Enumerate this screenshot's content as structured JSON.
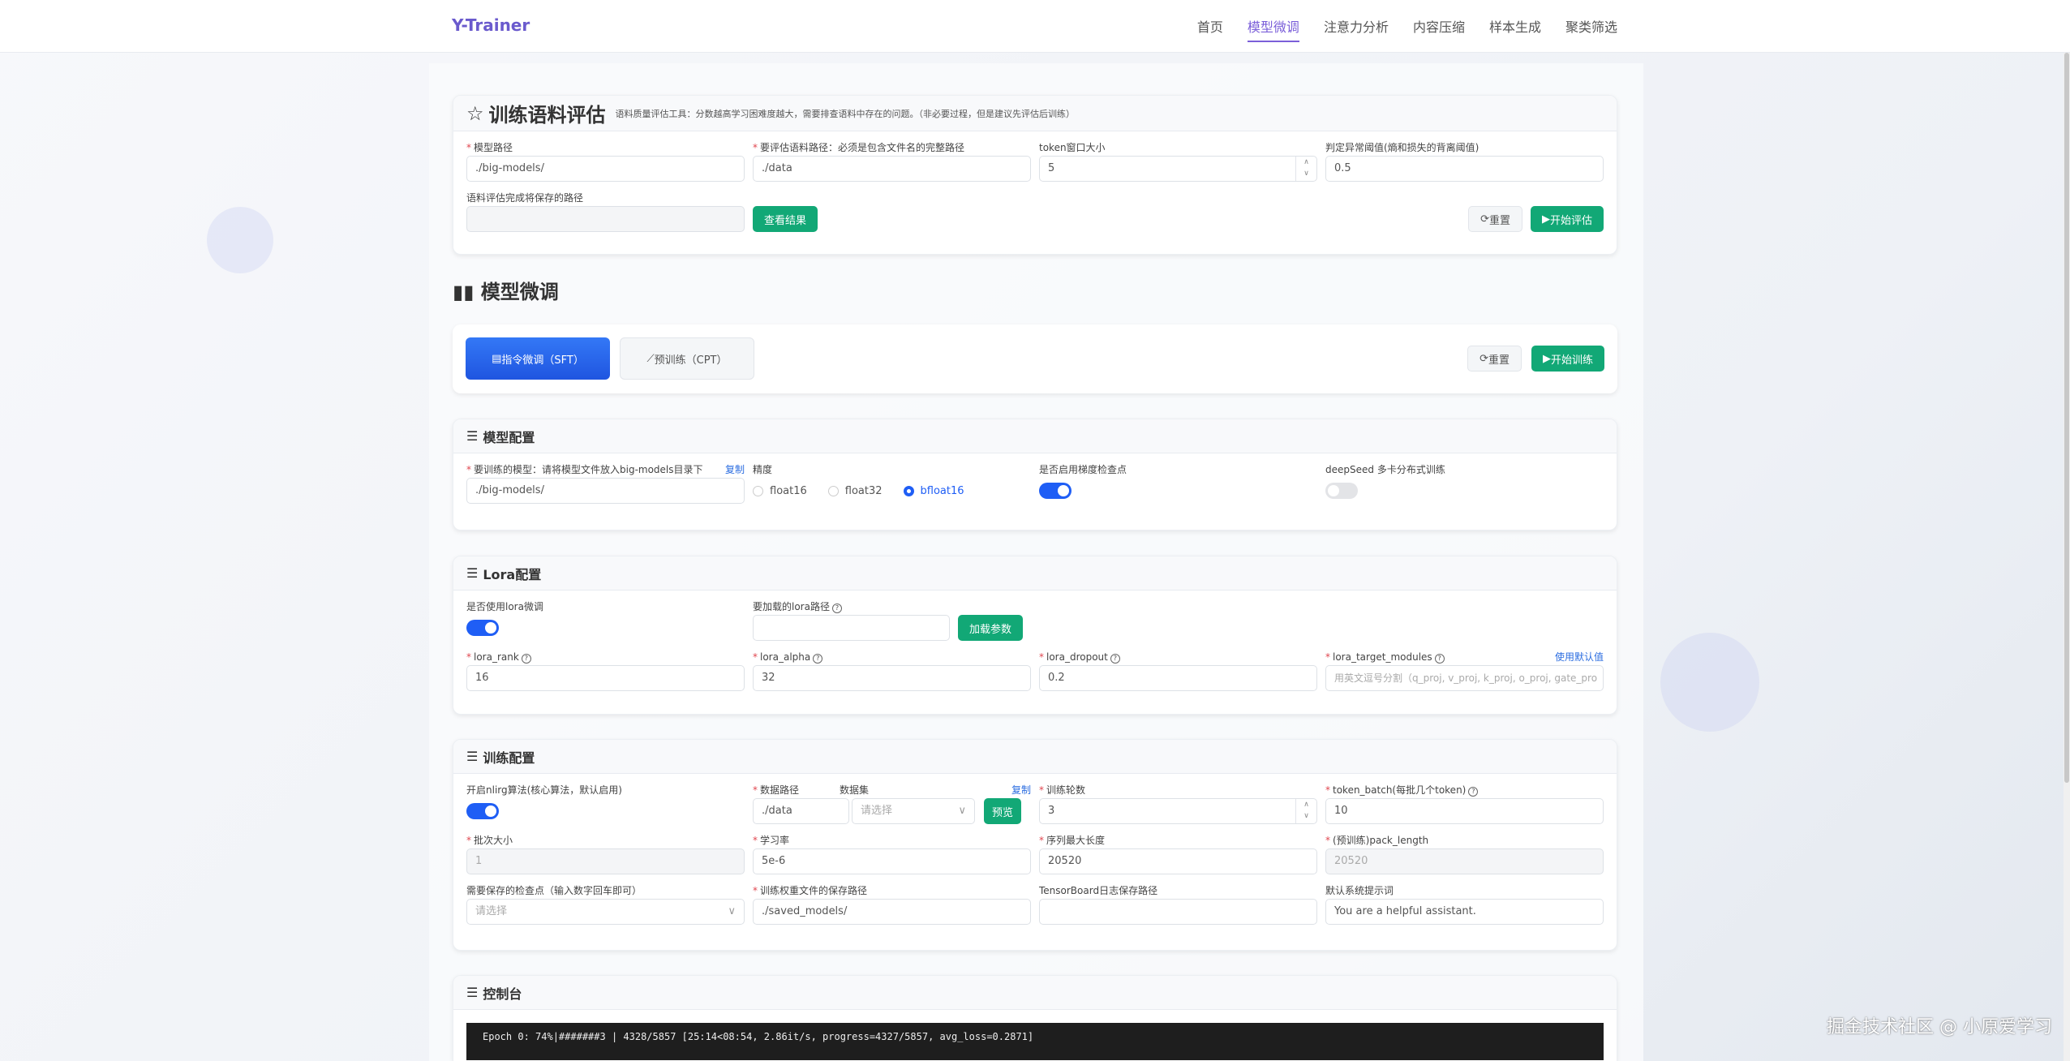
{
  "nav": {
    "logo": "Y-Trainer",
    "items": [
      "首页",
      "模型微调",
      "注意力分析",
      "内容压缩",
      "样本生成",
      "聚类筛选"
    ],
    "active": 1
  },
  "eval": {
    "title": "训练语料评估",
    "desc": "语料质量评估工具：分数越高学习困难度越大，需要排查语料中存在的问题。（非必要过程，但是建议先评估后训练）",
    "model_path_label": "模型路径",
    "model_path": "./big-models/",
    "data_path_label": "要评估语料路径：必须是包含文件名的完整路径",
    "data_path": "./data",
    "token_window_label": "token窗口大小",
    "token_window": "5",
    "threshold_label": "判定异常阈值(熵和损失的背离阈值)",
    "threshold": "0.5",
    "save_path_label": "语料评估完成将保存的路径",
    "save_path": "",
    "view_btn": "查看结果",
    "reset_btn": "重置",
    "start_btn": "开始评估"
  },
  "finetune": {
    "title": "模型微调",
    "tabs": [
      "指令微调（SFT）",
      "预训练（CPT）"
    ],
    "active_tab": 0,
    "reset_btn": "重置",
    "start_btn": "开始训练"
  },
  "model_cfg": {
    "title": "模型配置",
    "model_label": "要训练的模型：请将模型文件放入big-models目录下",
    "copy": "复制",
    "model": "./big-models/",
    "precision_label": "精度",
    "precision_options": [
      "float16",
      "float32",
      "bfloat16"
    ],
    "precision_selected": "bfloat16",
    "grad_ckpt_label": "是否启用梯度检查点",
    "grad_ckpt": true,
    "deepspeed_label": "deepSeed 多卡分布式训练",
    "deepspeed": false
  },
  "lora_cfg": {
    "title": "Lora配置",
    "use_lora_label": "是否使用lora微调",
    "use_lora": true,
    "lora_path_label": "要加载的lora路径",
    "lora_path": "",
    "load_btn": "加载参数",
    "rank_label": "lora_rank",
    "rank": "16",
    "alpha_label": "lora_alpha",
    "alpha": "32",
    "dropout_label": "lora_dropout",
    "dropout": "0.2",
    "modules_label": "lora_target_modules",
    "use_default": "使用默认值",
    "modules_placeholder": "用英文逗号分割（q_proj, v_proj, k_proj, o_proj, gate_pro"
  },
  "train_cfg": {
    "title": "训练配置",
    "nlirg_label": "开启nlirg算法(核心算法，默认启用)",
    "nlirg": true,
    "data_path_label": "数据路径",
    "data_path": "./data",
    "dataset_label": "数据集",
    "dataset_placeholder": "请选择",
    "copy": "复制",
    "preview_btn": "预览",
    "epochs_label": "训练轮数",
    "epochs": "3",
    "token_batch_label": "token_batch(每批几个token)",
    "token_batch": "10",
    "batch_label": "批次大小",
    "batch": "1",
    "lr_label": "学习率",
    "lr": "5e-6",
    "max_len_label": "序列最大长度",
    "max_len": "20520",
    "pack_label": "(预训练)pack_length",
    "pack": "20520",
    "ckpt_label": "需要保存的检查点（输入数字回车即可）",
    "ckpt_placeholder": "请选择",
    "save_label": "训练权重文件的保存路径",
    "save": "./saved_models/",
    "tb_label": "TensorBoard日志保存路径",
    "tb": "",
    "sys_label": "默认系统提示词",
    "sys": "You are a helpful assistant."
  },
  "console": {
    "title": "控制台",
    "line": "Epoch 0:  74%|#######3  | 4328/5857 [25:14<08:54,  2.86it/s, progress=4327/5857, avg_loss=0.2871]"
  },
  "watermark": "掘金技术社区 @ 小原爱学习"
}
